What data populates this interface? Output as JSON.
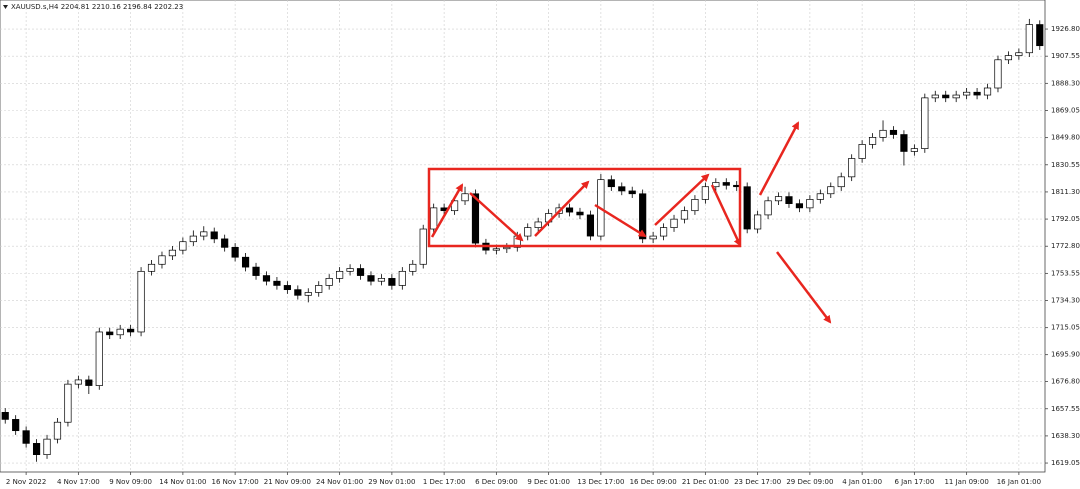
{
  "chart_data": {
    "type": "candlestick",
    "title": "XAUUSD.s,H4 2204.81 2210.16 2196.84 2202.23",
    "categories": [
      null,
      null,
      "2 Nov 2022",
      null,
      null,
      null,
      null,
      "4 Nov 17:00",
      null,
      null,
      null,
      null,
      "9 Nov 09:00",
      null,
      null,
      null,
      null,
      "14 Nov 01:00",
      null,
      null,
      null,
      null,
      "16 Nov 17:00",
      null,
      null,
      null,
      null,
      "21 Nov 09:00",
      null,
      null,
      null,
      null,
      "24 Nov 01:00",
      null,
      null,
      null,
      null,
      "29 Nov 01:00",
      null,
      null,
      null,
      null,
      "1 Dec 17:00",
      null,
      null,
      null,
      null,
      "6 Dec 09:00",
      null,
      null,
      null,
      null,
      "9 Dec 01:00",
      null,
      null,
      null,
      null,
      "13 Dec 17:00",
      null,
      null,
      null,
      null,
      "16 Dec 09:00",
      null,
      null,
      null,
      null,
      "21 Dec 01:00",
      null,
      null,
      null,
      null,
      "23 Dec 17:00",
      null,
      null,
      null,
      null,
      "29 Dec 09:00",
      null,
      null,
      null,
      null,
      "4 Jan 01:00",
      null,
      null,
      null,
      null,
      "6 Jan 17:00",
      null,
      null,
      null,
      null,
      "11 Jan 09:00",
      null,
      null,
      null,
      null,
      "16 Jan 01:00",
      null,
      null
    ],
    "open": [
      1655,
      1650,
      1642,
      1633,
      1625,
      1636,
      1648,
      1675,
      1678,
      1674,
      1712,
      1710,
      1714,
      1712,
      1755,
      1760,
      1766,
      1770,
      1776,
      1780,
      1783,
      1778,
      1772,
      1765,
      1758,
      1752,
      1748,
      1745,
      1742,
      1738,
      1740,
      1745,
      1750,
      1755,
      1757,
      1752,
      1748,
      1750,
      1745,
      1755,
      1760,
      1785,
      1800,
      1798,
      1805,
      1810,
      1775,
      1770,
      1771,
      1772,
      1780,
      1786,
      1790,
      1796,
      1800,
      1797,
      1795,
      1780,
      1820,
      1815,
      1812,
      1810,
      1778,
      1780,
      1786,
      1792,
      1798,
      1806,
      1815,
      1818,
      1816,
      1815,
      1785,
      1795,
      1805,
      1808,
      1803,
      1800,
      1806,
      1810,
      1815,
      1822,
      1835,
      1845,
      1850,
      1855,
      1852,
      1840,
      1842,
      1878,
      1880,
      1878,
      1880,
      1882,
      1880,
      1885,
      1905,
      1908,
      1910,
      1930
    ],
    "high": [
      1658,
      1653,
      1645,
      1636,
      1639,
      1651,
      1678,
      1681,
      1681,
      1715,
      1715,
      1717,
      1717,
      1758,
      1763,
      1769,
      1773,
      1779,
      1784,
      1787,
      1786,
      1781,
      1775,
      1768,
      1761,
      1755,
      1751,
      1748,
      1745,
      1743,
      1748,
      1753,
      1758,
      1760,
      1760,
      1755,
      1753,
      1753,
      1758,
      1763,
      1788,
      1803,
      1803,
      1808,
      1815,
      1813,
      1778,
      1774,
      1775,
      1783,
      1789,
      1793,
      1799,
      1803,
      1803,
      1800,
      1798,
      1824,
      1823,
      1818,
      1815,
      1813,
      1783,
      1789,
      1795,
      1801,
      1809,
      1818,
      1821,
      1821,
      1819,
      1818,
      1798,
      1808,
      1811,
      1811,
      1806,
      1809,
      1813,
      1818,
      1825,
      1838,
      1848,
      1853,
      1862,
      1858,
      1855,
      1845,
      1881,
      1883,
      1883,
      1883,
      1885,
      1885,
      1888,
      1908,
      1911,
      1913,
      1934,
      1933
    ],
    "low": [
      1647,
      1639,
      1630,
      1620,
      1622,
      1633,
      1645,
      1672,
      1668,
      1671,
      1707,
      1707,
      1709,
      1709,
      1752,
      1757,
      1763,
      1767,
      1773,
      1777,
      1775,
      1769,
      1762,
      1755,
      1749,
      1745,
      1742,
      1739,
      1735,
      1733,
      1737,
      1742,
      1747,
      1752,
      1749,
      1745,
      1745,
      1742,
      1742,
      1752,
      1757,
      1782,
      1795,
      1795,
      1802,
      1772,
      1767,
      1767,
      1768,
      1769,
      1777,
      1783,
      1787,
      1793,
      1794,
      1792,
      1777,
      1777,
      1812,
      1809,
      1807,
      1775,
      1775,
      1777,
      1783,
      1789,
      1795,
      1803,
      1812,
      1813,
      1812,
      1782,
      1782,
      1792,
      1802,
      1800,
      1797,
      1797,
      1803,
      1807,
      1812,
      1819,
      1832,
      1842,
      1847,
      1849,
      1830,
      1837,
      1839,
      1875,
      1875,
      1875,
      1877,
      1877,
      1877,
      1882,
      1902,
      1905,
      1907,
      1912
    ],
    "close": [
      1650,
      1642,
      1633,
      1625,
      1636,
      1648,
      1675,
      1678,
      1674,
      1712,
      1710,
      1714,
      1712,
      1755,
      1760,
      1766,
      1770,
      1776,
      1780,
      1783,
      1778,
      1772,
      1765,
      1758,
      1752,
      1748,
      1745,
      1742,
      1738,
      1740,
      1745,
      1750,
      1755,
      1757,
      1752,
      1748,
      1750,
      1745,
      1755,
      1760,
      1785,
      1800,
      1798,
      1805,
      1810,
      1775,
      1770,
      1771,
      1772,
      1780,
      1786,
      1790,
      1796,
      1800,
      1797,
      1795,
      1780,
      1820,
      1815,
      1812,
      1810,
      1778,
      1780,
      1786,
      1792,
      1798,
      1806,
      1815,
      1818,
      1816,
      1815,
      1785,
      1795,
      1805,
      1808,
      1803,
      1800,
      1806,
      1810,
      1815,
      1822,
      1835,
      1845,
      1850,
      1855,
      1852,
      1840,
      1842,
      1878,
      1880,
      1878,
      1880,
      1882,
      1880,
      1885,
      1905,
      1908,
      1910,
      1930,
      1915
    ],
    "ylim": [
      1612.7,
      1947.4
    ],
    "yticks": [
      1619.05,
      {
        "value": 1638.3,
        "label": "1638.30"
      },
      1657.55,
      {
        "value": 1676.8,
        "label": "1676.80"
      },
      {
        "value": 1695.9,
        "label": "1695.90"
      },
      1715.05,
      {
        "value": 1734.3,
        "label": "1734.30"
      },
      1753.55,
      {
        "value": 1772.8,
        "label": "1772.80"
      },
      1792.05,
      {
        "value": 1811.3,
        "label": "1811.30"
      },
      1830.55,
      {
        "value": 1849.8,
        "label": "1849.80"
      },
      1869.05,
      {
        "value": 1888.3,
        "label": "1888.30"
      },
      1907.55,
      {
        "value": 1926.8,
        "label": "1926.80"
      }
    ],
    "grid": true
  }
}
